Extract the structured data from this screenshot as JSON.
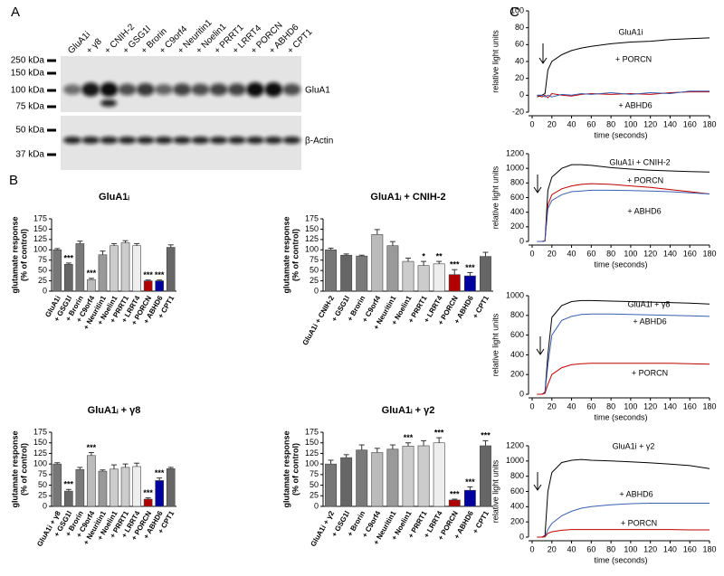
{
  "panel_labels": [
    "A",
    "B",
    "C"
  ],
  "blot": {
    "lanes": [
      "GluA1i",
      "+ γ8",
      "+ CNIH-2",
      "+ GSG1l",
      "+ Brorin",
      "+ C9orf4",
      "+ Neuritin1",
      "+ Noelin1",
      "+ PRRT1",
      "+ LRRT4",
      "+ PORCN",
      "+ ABHD6",
      "+ CPT1"
    ],
    "lane_colors": [
      "#000000",
      "#000000",
      "#000000",
      "#000000",
      "#000000",
      "#000000",
      "#000000",
      "#000000",
      "#000000",
      "#000000",
      "#c00000",
      "#2e5aa8",
      "#000000"
    ],
    "markers": [
      "250 kDa",
      "150 kDa",
      "100 kDa",
      "75 kDa",
      "50 kDa",
      "37 kDa"
    ],
    "bands": [
      "GluA1",
      "β-Actin"
    ]
  },
  "chart_data": [
    {
      "type": "bar",
      "title": "GluA1ᵢ",
      "ylabel": [
        "glutamate response",
        "(% of control)"
      ],
      "categories": [
        "GluA1i",
        "+ GSG1l",
        "+ Brorin",
        "+ C9orf4",
        "+ Neuritin1",
        "+ Noelin1",
        "+ PRRT1",
        "+ LRRT4",
        "+ PORCN",
        "+ ABHD6",
        "+ CPT1"
      ],
      "values": [
        100,
        65,
        115,
        28,
        88,
        110,
        117,
        110,
        25,
        25,
        106
      ],
      "errors": [
        3,
        3,
        6,
        3,
        9,
        5,
        5,
        5,
        2,
        2,
        6
      ],
      "colors": [
        "#777777",
        "#666666",
        "#7a7a7a",
        "#bbbbbb",
        "#999999",
        "#cccccc",
        "#cccccc",
        "#eeeeee",
        "#b00000",
        "#0000a0",
        "#666666"
      ],
      "annotations": [
        null,
        "***",
        null,
        "***",
        null,
        null,
        null,
        null,
        "***",
        "***",
        null
      ],
      "ylim": [
        0,
        175
      ],
      "yticks": [
        0,
        25,
        50,
        75,
        100,
        125,
        150,
        175
      ]
    },
    {
      "type": "bar",
      "title": "GluA1ᵢ + CNIH-2",
      "ylabel": [
        "glutamate response",
        "(% of control)"
      ],
      "categories": [
        "GluA1i + CNIH-2",
        "+ GSG1l",
        "+ Brorin",
        "+ C9orf4",
        "+ Neuritin1",
        "+ Noelin1",
        "+ PRRT1",
        "+ LRRT4",
        "+ PORCN",
        "+ ABHD6",
        "+ CPT1"
      ],
      "values": [
        100,
        87,
        85,
        137,
        110,
        72,
        62,
        66,
        40,
        37,
        84
      ],
      "errors": [
        4,
        3,
        2,
        12,
        10,
        8,
        10,
        6,
        12,
        8,
        10
      ],
      "colors": [
        "#777777",
        "#666666",
        "#7a7a7a",
        "#bbbbbb",
        "#999999",
        "#cccccc",
        "#cccccc",
        "#eeeeee",
        "#b00000",
        "#0000a0",
        "#666666"
      ],
      "annotations": [
        null,
        null,
        null,
        null,
        null,
        null,
        "*",
        "**",
        "***",
        "***",
        null
      ],
      "ylim": [
        0,
        175
      ],
      "yticks": [
        0,
        25,
        50,
        75,
        100,
        125,
        150,
        175
      ]
    },
    {
      "type": "bar",
      "title": "GluA1ᵢ + γ8",
      "ylabel": [
        "glutamate response",
        "(% of control)"
      ],
      "categories": [
        "GluA1i + γ8",
        "+ GSG1l",
        "+ Brorin",
        "+ C9orf4",
        "+ Neuritin1",
        "+ Noelin1",
        "+ PRRT1",
        "+ LRRT4",
        "+ PORCN",
        "+ ABHD6",
        "+ CPT1"
      ],
      "values": [
        100,
        36,
        87,
        120,
        83,
        88,
        92,
        94,
        17,
        61,
        89
      ],
      "errors": [
        3,
        4,
        5,
        7,
        3,
        10,
        8,
        8,
        3,
        6,
        3
      ],
      "colors": [
        "#777777",
        "#666666",
        "#7a7a7a",
        "#bbbbbb",
        "#999999",
        "#cccccc",
        "#cccccc",
        "#eeeeee",
        "#b00000",
        "#0000a0",
        "#666666"
      ],
      "annotations": [
        null,
        "***",
        null,
        "***",
        null,
        null,
        null,
        null,
        "***",
        "***",
        null
      ],
      "ylim": [
        0,
        175
      ],
      "yticks": [
        0,
        25,
        50,
        75,
        100,
        125,
        150,
        175
      ]
    },
    {
      "type": "bar",
      "title": "GluA1ᵢ + γ2",
      "ylabel": [
        "glutamate response",
        "(% of control)"
      ],
      "categories": [
        "GluA1i + γ2",
        "+ GSG1l",
        "+ Brorin",
        "+ C9orf4",
        "+ Neuritin1",
        "+ Noelin1",
        "+ PRRT1",
        "+ LRRT4",
        "+ PORCN",
        "+ ABHD6",
        "+ CPT1"
      ],
      "values": [
        100,
        115,
        133,
        127,
        135,
        142,
        143,
        150,
        15,
        38,
        143
      ],
      "errors": [
        9,
        7,
        12,
        10,
        10,
        8,
        12,
        12,
        2,
        8,
        12
      ],
      "colors": [
        "#777777",
        "#666666",
        "#7a7a7a",
        "#bbbbbb",
        "#999999",
        "#cccccc",
        "#cccccc",
        "#eeeeee",
        "#b00000",
        "#0000a0",
        "#666666"
      ],
      "annotations": [
        null,
        null,
        null,
        null,
        null,
        "***",
        null,
        "***",
        "***",
        "***",
        "***"
      ],
      "ylim": [
        0,
        175
      ],
      "yticks": [
        0,
        25,
        50,
        75,
        100,
        125,
        150,
        175
      ]
    },
    {
      "type": "line",
      "ylabel": "relative light units",
      "xlabel": "time (seconds)",
      "x": [
        5,
        10,
        13,
        16,
        20,
        30,
        40,
        50,
        60,
        80,
        100,
        120,
        140,
        160,
        180
      ],
      "series": [
        {
          "name": "GluA1i",
          "color": "#000000",
          "values": [
            -2,
            0,
            2,
            30,
            40,
            48,
            53,
            56,
            58,
            61,
            63,
            64,
            66,
            67,
            68
          ]
        },
        {
          "name": "+ PORCN",
          "color": "#c00000",
          "values": [
            0,
            -2,
            0,
            -3,
            2,
            0,
            -1,
            1,
            2,
            1,
            2,
            1,
            3,
            4,
            4
          ]
        },
        {
          "name": "+ ABHD6",
          "color": "#3b5fb0",
          "values": [
            0,
            0,
            -2,
            0,
            -2,
            1,
            0,
            2,
            1,
            3,
            1,
            3,
            2,
            5,
            5
          ]
        }
      ],
      "xlim": [
        0,
        180
      ],
      "xticks": [
        0,
        20,
        40,
        60,
        80,
        100,
        120,
        140,
        160,
        180
      ],
      "ylim": [
        -20,
        100
      ],
      "yticks": [
        -20,
        0,
        20,
        40,
        60,
        80,
        100
      ]
    },
    {
      "type": "line",
      "ylabel": "relative light units",
      "xlabel": "time (seconds)",
      "x": [
        5,
        10,
        13,
        16,
        20,
        30,
        40,
        50,
        60,
        80,
        100,
        120,
        140,
        160,
        180
      ],
      "series": [
        {
          "name": "GluA1i + CNIH-2",
          "color": "#000000",
          "values": [
            0,
            0,
            10,
            700,
            880,
            1000,
            1050,
            1050,
            1040,
            1010,
            990,
            975,
            965,
            955,
            950
          ]
        },
        {
          "name": "+ PORCN",
          "color": "#c00000",
          "values": [
            0,
            0,
            5,
            500,
            640,
            720,
            760,
            780,
            790,
            780,
            760,
            740,
            710,
            680,
            650
          ]
        },
        {
          "name": "+ ABHD6",
          "color": "#3b5fb0",
          "values": [
            0,
            0,
            5,
            450,
            560,
            640,
            680,
            690,
            700,
            700,
            695,
            690,
            680,
            665,
            650
          ]
        }
      ],
      "xlim": [
        0,
        180
      ],
      "xticks": [
        0,
        20,
        40,
        60,
        80,
        100,
        120,
        140,
        160,
        180
      ],
      "ylim": [
        0,
        1200
      ],
      "yticks": [
        0,
        200,
        400,
        600,
        800,
        1000,
        1200
      ]
    },
    {
      "type": "line",
      "ylabel": "relative light units",
      "xlabel": "time (seconds)",
      "x": [
        5,
        10,
        13,
        16,
        20,
        30,
        40,
        50,
        60,
        80,
        100,
        120,
        140,
        160,
        180
      ],
      "series": [
        {
          "name": "GluA1i + γ8",
          "color": "#000000",
          "values": [
            0,
            0,
            20,
            400,
            780,
            900,
            940,
            950,
            950,
            945,
            940,
            935,
            930,
            925,
            915
          ]
        },
        {
          "name": "+ ABHD6",
          "color": "#3b5fb0",
          "values": [
            0,
            0,
            15,
            300,
            600,
            750,
            790,
            810,
            815,
            815,
            810,
            805,
            800,
            795,
            790
          ]
        },
        {
          "name": "+ PORCN",
          "color": "#c00000",
          "values": [
            0,
            0,
            10,
            100,
            200,
            270,
            300,
            310,
            315,
            315,
            315,
            315,
            315,
            310,
            305
          ]
        }
      ],
      "xlim": [
        0,
        180
      ],
      "xticks": [
        0,
        20,
        40,
        60,
        80,
        100,
        120,
        140,
        160,
        180
      ],
      "ylim": [
        0,
        1000
      ],
      "yticks": [
        0,
        200,
        400,
        600,
        800,
        1000
      ]
    },
    {
      "type": "line",
      "ylabel": "relative light units",
      "xlabel": "time (seconds)",
      "x": [
        5,
        10,
        13,
        16,
        20,
        30,
        40,
        50,
        60,
        80,
        100,
        120,
        140,
        160,
        180
      ],
      "series": [
        {
          "name": "GluA1i + γ2",
          "color": "#000000",
          "values": [
            0,
            0,
            20,
            600,
            850,
            980,
            1010,
            1020,
            1010,
            1000,
            990,
            975,
            960,
            940,
            900
          ]
        },
        {
          "name": "+ ABHD6",
          "color": "#3b5fb0",
          "values": [
            0,
            0,
            10,
            100,
            180,
            280,
            340,
            380,
            400,
            425,
            440,
            445,
            445,
            445,
            445
          ]
        },
        {
          "name": "+ PORCN",
          "color": "#c00000",
          "values": [
            0,
            0,
            5,
            50,
            70,
            90,
            100,
            100,
            100,
            100,
            100,
            100,
            100,
            95,
            95
          ]
        }
      ],
      "xlim": [
        0,
        180
      ],
      "xticks": [
        0,
        20,
        40,
        60,
        80,
        100,
        120,
        140,
        160,
        180
      ],
      "ylim": [
        0,
        1200
      ],
      "yticks": [
        0,
        200,
        400,
        600,
        800,
        1000,
        1200
      ]
    }
  ]
}
